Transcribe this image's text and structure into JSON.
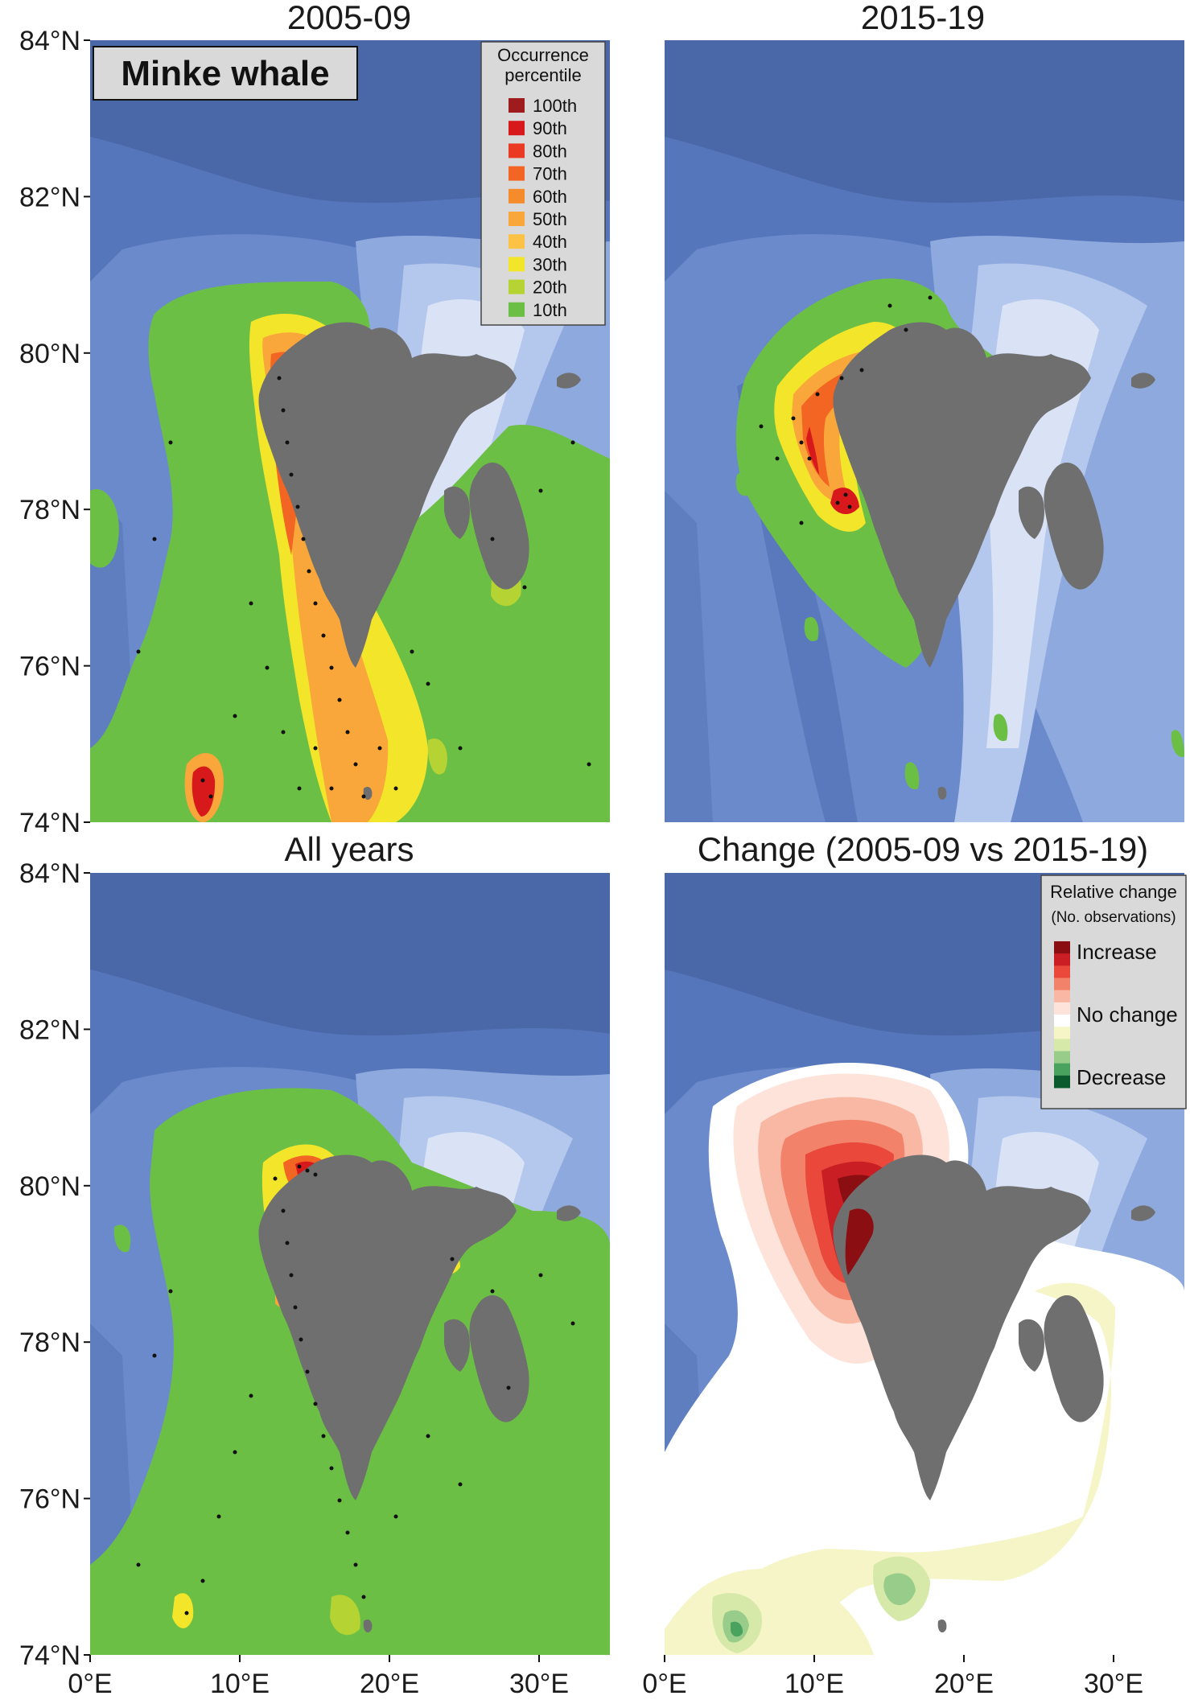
{
  "panels": [
    {
      "title": "2005-09"
    },
    {
      "title": "2015-19"
    },
    {
      "title": "All years"
    },
    {
      "title": "Change (2005-09 vs 2015-19)"
    }
  ],
  "species_label": "Minke whale",
  "latitude_ticks": [
    "84°N",
    "82°N",
    "80°N",
    "78°N",
    "76°N",
    "74°N"
  ],
  "longitude_ticks": [
    "0°E",
    "10°E",
    "20°E",
    "30°E"
  ],
  "occurrence_legend": {
    "title_line1": "Occurrence",
    "title_line2": "percentile",
    "items": [
      {
        "label": "100th",
        "color": "#9e1b1e"
      },
      {
        "label": "90th",
        "color": "#d7191c"
      },
      {
        "label": "80th",
        "color": "#ea3a24"
      },
      {
        "label": "70th",
        "color": "#f26522"
      },
      {
        "label": "60th",
        "color": "#f68b2c"
      },
      {
        "label": "50th",
        "color": "#f9a63a"
      },
      {
        "label": "40th",
        "color": "#fcc245"
      },
      {
        "label": "30th",
        "color": "#f3e52a"
      },
      {
        "label": "20th",
        "color": "#b5d333"
      },
      {
        "label": "10th",
        "color": "#6cbf45"
      }
    ]
  },
  "change_legend": {
    "title_line1": "Relative change",
    "title_line2": "(No. observations)",
    "increase": "Increase",
    "no_change": "No change",
    "decrease": "Decrease",
    "colors": [
      "#8b0e12",
      "#c81e24",
      "#e9483b",
      "#f3826b",
      "#f9b8a4",
      "#fde3d9",
      "#ffffff",
      "#f5f5c8",
      "#d6e9a9",
      "#98cc8a",
      "#4aa25f",
      "#0b5a2d"
    ]
  },
  "colors": {
    "deep_ocean": "#4664a4",
    "mid_ocean": "#5c7fc4",
    "shelf": "#8fa8dd",
    "shallow": "#c7d5f0",
    "land": "#6f6f6f"
  }
}
